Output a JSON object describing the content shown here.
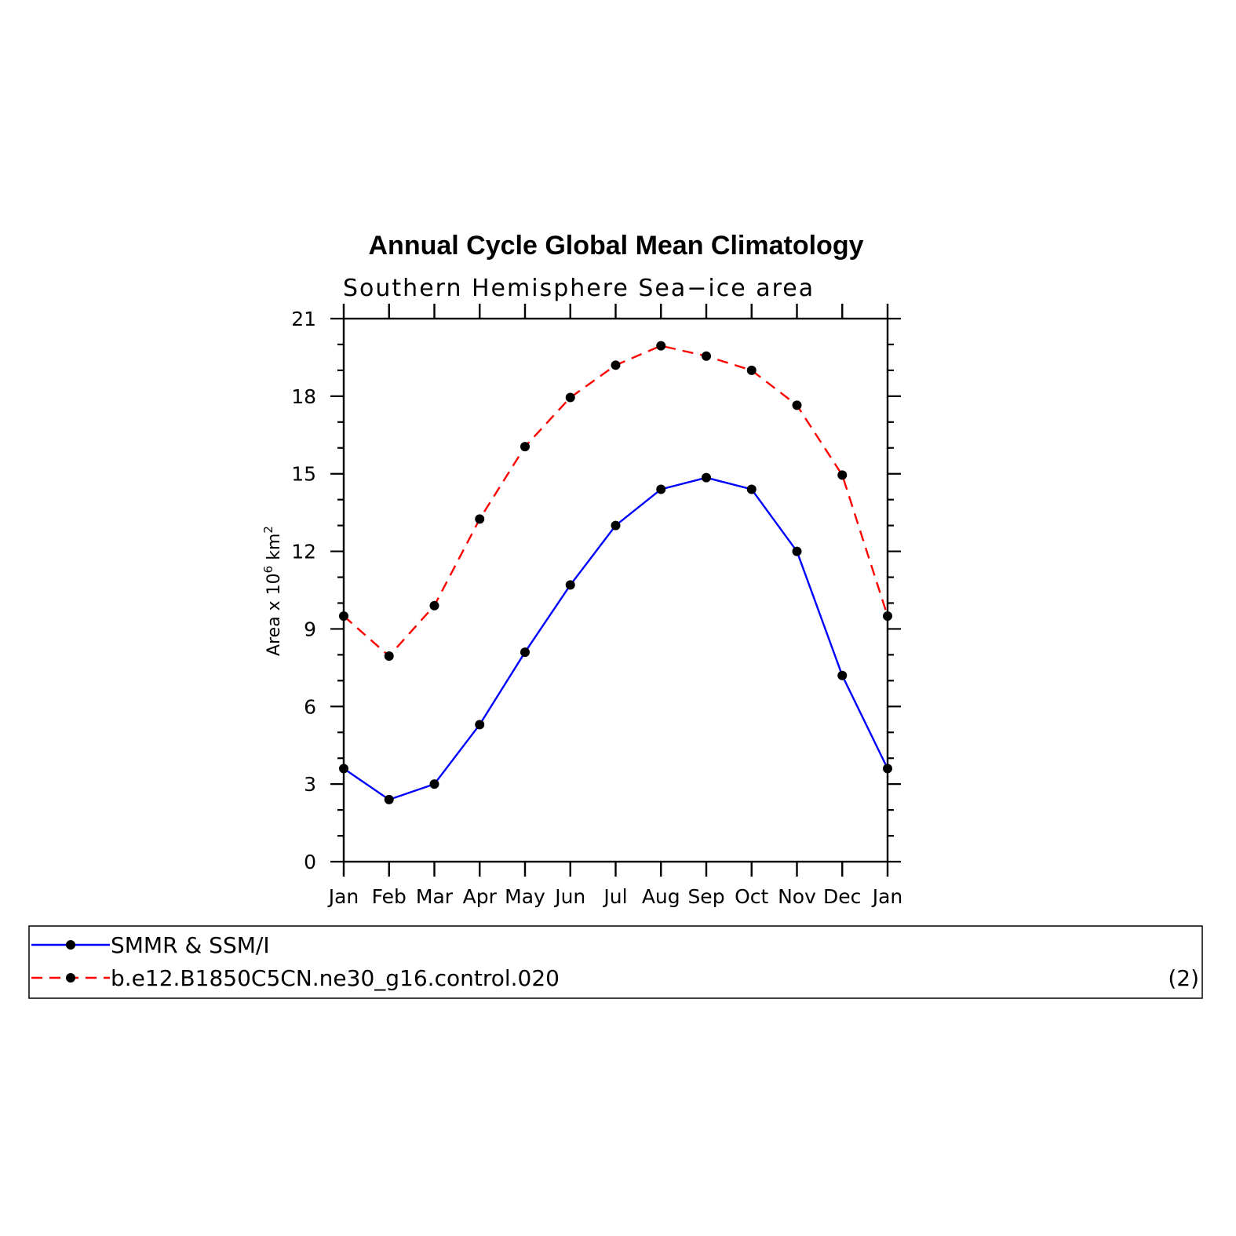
{
  "chart_data": {
    "type": "line",
    "title": "Annual Cycle Global Mean Climatology",
    "subtitle": "Southern Hemisphere Sea−ice area",
    "ylabel": "Area x 10",
    "ylabel_exp1": "6",
    "ylabel_unit": " km",
    "ylabel_exp2": "2",
    "xlabel": "",
    "ylim": [
      0,
      21
    ],
    "yticks": [
      "0",
      "3",
      "6",
      "9",
      "12",
      "15",
      "18",
      "21"
    ],
    "categories": [
      "Jan",
      "Feb",
      "Mar",
      "Apr",
      "May",
      "Jun",
      "Jul",
      "Aug",
      "Sep",
      "Oct",
      "Nov",
      "Dec",
      "Jan"
    ],
    "series": [
      {
        "name": "SMMR & SSM/I",
        "color": "#0000ff",
        "dash": "solid",
        "values": [
          3.6,
          2.4,
          3.0,
          5.3,
          8.1,
          10.7,
          13.0,
          14.4,
          14.85,
          14.4,
          12.0,
          7.2,
          3.6
        ]
      },
      {
        "name": "b.e12.B1850C5CN.ne30_g16.control.020",
        "color": "#ff0000",
        "dash": "dashed",
        "values": [
          9.5,
          7.95,
          9.9,
          13.25,
          16.05,
          17.95,
          19.2,
          19.95,
          19.55,
          19.0,
          17.65,
          14.95,
          9.5
        ]
      }
    ],
    "grid": false,
    "legend": "bottom",
    "panel_label": "(2)"
  }
}
